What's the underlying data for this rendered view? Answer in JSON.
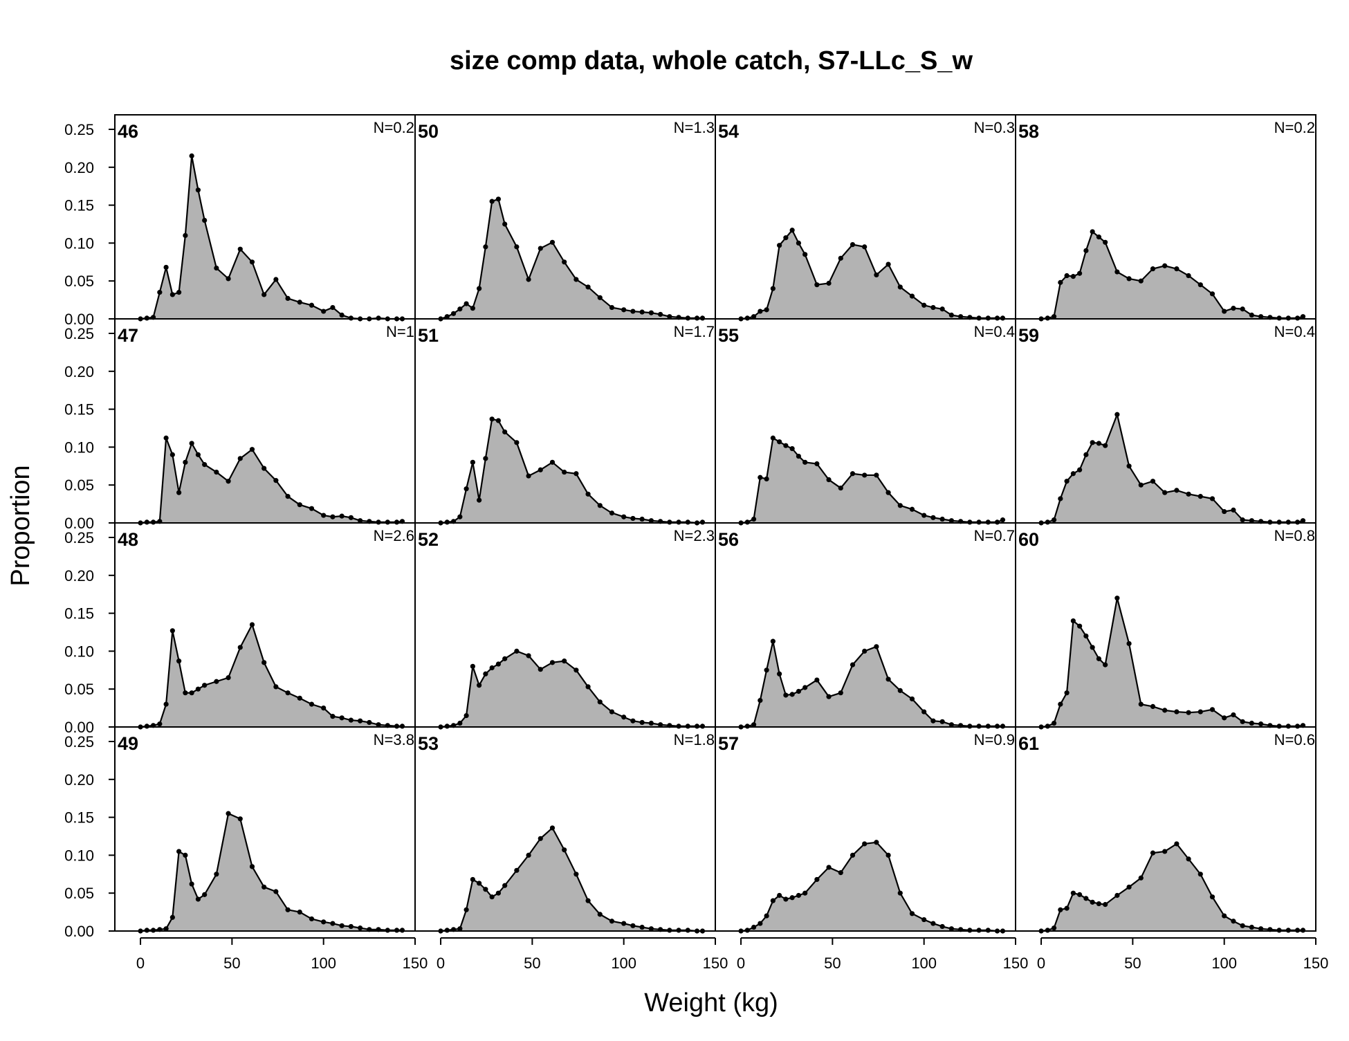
{
  "chart_data": {
    "type": "area",
    "title": "size comp data, whole catch, S7-LLc_S_w",
    "xlabel": "Weight (kg)",
    "ylabel": "Proportion",
    "xlim": [
      -14,
      150
    ],
    "ylim": [
      0,
      0.25
    ],
    "xticks": [
      0,
      50,
      100,
      150
    ],
    "yticks": [
      0,
      0.05,
      0.1,
      0.15,
      0.2,
      0.25
    ],
    "xtick_labels": [
      "0",
      "50",
      "100",
      "150"
    ],
    "ytick_labels": [
      "0.00",
      "0.05",
      "0.10",
      "0.15",
      "0.20",
      "0.25"
    ],
    "grid": false,
    "layout": "4 rows x 4 columns, panels ordered down each column",
    "fill_color": "#b3b3b3",
    "line_color": "#000000",
    "x": [
      0,
      3.5,
      7,
      10.5,
      14,
      17.5,
      21,
      24.5,
      28,
      31.5,
      35,
      41.5,
      48,
      54.5,
      61,
      67.5,
      74,
      80.5,
      87,
      93.5,
      100,
      105,
      110,
      115,
      120,
      125,
      130,
      135,
      140,
      143
    ],
    "panels": [
      {
        "label": "46",
        "n_label": "N=0.2",
        "values": [
          0,
          0.001,
          0.002,
          0.035,
          0.068,
          0.032,
          0.035,
          0.11,
          0.215,
          0.17,
          0.13,
          0.067,
          0.053,
          0.092,
          0.075,
          0.032,
          0.052,
          0.027,
          0.022,
          0.018,
          0.01,
          0.015,
          0.005,
          0.001,
          0,
          0,
          0.001,
          0,
          0,
          0
        ]
      },
      {
        "label": "47",
        "n_label": "N=1",
        "values": [
          0,
          0.001,
          0.001,
          0.002,
          0.112,
          0.09,
          0.04,
          0.08,
          0.105,
          0.09,
          0.077,
          0.067,
          0.055,
          0.085,
          0.097,
          0.072,
          0.056,
          0.035,
          0.024,
          0.019,
          0.01,
          0.008,
          0.009,
          0.007,
          0.003,
          0.002,
          0.001,
          0.001,
          0.001,
          0.002
        ]
      },
      {
        "label": "48",
        "n_label": "N=2.6",
        "values": [
          0,
          0.001,
          0.002,
          0.004,
          0.03,
          0.127,
          0.087,
          0.045,
          0.045,
          0.05,
          0.055,
          0.06,
          0.065,
          0.105,
          0.135,
          0.085,
          0.053,
          0.045,
          0.038,
          0.03,
          0.025,
          0.014,
          0.012,
          0.009,
          0.008,
          0.006,
          0.003,
          0.002,
          0.001,
          0.001
        ]
      },
      {
        "label": "49",
        "n_label": "N=3.8",
        "values": [
          0,
          0.001,
          0.001,
          0.002,
          0.003,
          0.018,
          0.105,
          0.1,
          0.062,
          0.042,
          0.048,
          0.075,
          0.155,
          0.148,
          0.085,
          0.058,
          0.052,
          0.028,
          0.025,
          0.016,
          0.012,
          0.01,
          0.007,
          0.006,
          0.004,
          0.002,
          0.002,
          0.001,
          0.001,
          0.001
        ]
      },
      {
        "label": "50",
        "n_label": "N=1.3",
        "values": [
          0,
          0.003,
          0.007,
          0.013,
          0.02,
          0.014,
          0.04,
          0.095,
          0.155,
          0.158,
          0.125,
          0.095,
          0.052,
          0.093,
          0.101,
          0.075,
          0.052,
          0.042,
          0.028,
          0.015,
          0.012,
          0.01,
          0.009,
          0.008,
          0.006,
          0.003,
          0.002,
          0.001,
          0.001,
          0.001
        ]
      },
      {
        "label": "51",
        "n_label": "N=1.7",
        "values": [
          0,
          0.001,
          0.002,
          0.008,
          0.045,
          0.08,
          0.03,
          0.085,
          0.137,
          0.135,
          0.12,
          0.106,
          0.062,
          0.07,
          0.08,
          0.067,
          0.065,
          0.038,
          0.023,
          0.013,
          0.008,
          0.006,
          0.005,
          0.003,
          0.002,
          0.001,
          0.001,
          0.001,
          0,
          0.001
        ]
      },
      {
        "label": "52",
        "n_label": "N=2.3",
        "values": [
          0,
          0.001,
          0.002,
          0.005,
          0.015,
          0.08,
          0.055,
          0.07,
          0.078,
          0.083,
          0.09,
          0.1,
          0.094,
          0.076,
          0.085,
          0.087,
          0.075,
          0.053,
          0.033,
          0.02,
          0.013,
          0.008,
          0.006,
          0.005,
          0.003,
          0.002,
          0.001,
          0.001,
          0.001,
          0.001
        ]
      },
      {
        "label": "53",
        "n_label": "N=1.8",
        "values": [
          0,
          0.001,
          0.002,
          0.003,
          0.028,
          0.068,
          0.063,
          0.055,
          0.045,
          0.05,
          0.06,
          0.08,
          0.1,
          0.122,
          0.136,
          0.107,
          0.075,
          0.04,
          0.022,
          0.013,
          0.01,
          0.007,
          0.005,
          0.003,
          0.002,
          0.001,
          0.001,
          0.001,
          0,
          0
        ]
      },
      {
        "label": "54",
        "n_label": "N=0.3",
        "values": [
          0,
          0.001,
          0.003,
          0.01,
          0.012,
          0.04,
          0.097,
          0.107,
          0.117,
          0.1,
          0.085,
          0.045,
          0.047,
          0.08,
          0.098,
          0.095,
          0.058,
          0.072,
          0.042,
          0.03,
          0.018,
          0.015,
          0.013,
          0.005,
          0.003,
          0.002,
          0.001,
          0.001,
          0.001,
          0.001
        ]
      },
      {
        "label": "55",
        "n_label": "N=0.4",
        "values": [
          0,
          0.001,
          0.005,
          0.06,
          0.058,
          0.112,
          0.107,
          0.102,
          0.098,
          0.088,
          0.08,
          0.078,
          0.057,
          0.046,
          0.065,
          0.063,
          0.063,
          0.04,
          0.023,
          0.018,
          0.01,
          0.007,
          0.005,
          0.003,
          0.002,
          0.001,
          0.001,
          0.001,
          0.001,
          0.004
        ]
      },
      {
        "label": "56",
        "n_label": "N=0.7",
        "values": [
          0,
          0.001,
          0.003,
          0.035,
          0.075,
          0.113,
          0.07,
          0.042,
          0.043,
          0.047,
          0.052,
          0.062,
          0.04,
          0.045,
          0.082,
          0.1,
          0.106,
          0.063,
          0.048,
          0.037,
          0.02,
          0.008,
          0.007,
          0.003,
          0.002,
          0.001,
          0.001,
          0.001,
          0.001,
          0.001
        ]
      },
      {
        "label": "57",
        "n_label": "N=0.9",
        "values": [
          0,
          0.001,
          0.005,
          0.01,
          0.02,
          0.04,
          0.047,
          0.042,
          0.044,
          0.047,
          0.05,
          0.068,
          0.084,
          0.077,
          0.1,
          0.115,
          0.117,
          0.1,
          0.05,
          0.023,
          0.015,
          0.01,
          0.006,
          0.003,
          0.002,
          0.001,
          0.001,
          0.001,
          0,
          0
        ]
      },
      {
        "label": "58",
        "n_label": "N=0.2",
        "values": [
          0,
          0.001,
          0.003,
          0.048,
          0.057,
          0.056,
          0.06,
          0.09,
          0.115,
          0.108,
          0.101,
          0.062,
          0.053,
          0.05,
          0.066,
          0.07,
          0.066,
          0.057,
          0.045,
          0.033,
          0.01,
          0.014,
          0.013,
          0.005,
          0.003,
          0.002,
          0.001,
          0.001,
          0.001,
          0.003
        ]
      },
      {
        "label": "59",
        "n_label": "N=0.4",
        "values": [
          0,
          0.001,
          0.004,
          0.032,
          0.055,
          0.065,
          0.07,
          0.09,
          0.106,
          0.105,
          0.102,
          0.143,
          0.075,
          0.05,
          0.055,
          0.04,
          0.043,
          0.038,
          0.035,
          0.032,
          0.015,
          0.017,
          0.004,
          0.003,
          0.002,
          0.001,
          0.001,
          0.001,
          0.001,
          0.003
        ]
      },
      {
        "label": "60",
        "n_label": "N=0.8",
        "values": [
          0,
          0.001,
          0.005,
          0.03,
          0.045,
          0.14,
          0.133,
          0.12,
          0.105,
          0.09,
          0.082,
          0.17,
          0.11,
          0.03,
          0.027,
          0.022,
          0.02,
          0.019,
          0.02,
          0.023,
          0.012,
          0.016,
          0.007,
          0.005,
          0.004,
          0.002,
          0.001,
          0.001,
          0.001,
          0.002
        ]
      },
      {
        "label": "61",
        "n_label": "N=0.6",
        "values": [
          0,
          0.001,
          0.004,
          0.028,
          0.03,
          0.05,
          0.048,
          0.043,
          0.038,
          0.036,
          0.035,
          0.047,
          0.058,
          0.07,
          0.103,
          0.105,
          0.115,
          0.095,
          0.075,
          0.045,
          0.02,
          0.013,
          0.007,
          0.005,
          0.003,
          0.002,
          0.001,
          0.001,
          0.001,
          0.001
        ]
      }
    ]
  }
}
